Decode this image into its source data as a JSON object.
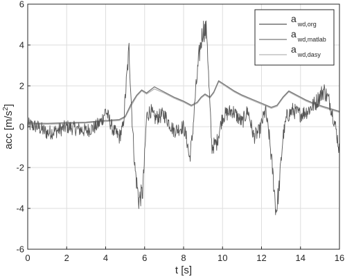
{
  "chart_data": {
    "type": "line",
    "xlabel": "t [s]",
    "ylabel_base": "acc [m/s",
    "ylabel_sup": "2",
    "ylabel_end": "]",
    "xlim": [
      0,
      16
    ],
    "ylim": [
      -6,
      6
    ],
    "x_ticks": [
      0,
      2,
      4,
      6,
      8,
      10,
      12,
      14,
      16
    ],
    "y_ticks": [
      -6,
      -4,
      -2,
      0,
      2,
      4,
      6
    ],
    "grid": true,
    "legend_position": "top-right",
    "legend": [
      {
        "main": "a",
        "sub": "wd,org",
        "color": "#555555"
      },
      {
        "main": "a",
        "sub": "wd,matlab",
        "color": "#777777"
      },
      {
        "main": "a",
        "sub": "wd,dasy",
        "color": "#b4b4b4"
      }
    ],
    "series": [
      {
        "name": "a_wd,org",
        "color": "#555555",
        "kind": "noisy",
        "noise_amplitude": 0.35,
        "sample_count": 800,
        "envelope": [
          [
            0.0,
            0.1
          ],
          [
            0.5,
            0.0
          ],
          [
            1.0,
            -0.3
          ],
          [
            1.5,
            -0.2
          ],
          [
            2.0,
            0.0
          ],
          [
            2.5,
            -0.1
          ],
          [
            3.0,
            -0.2
          ],
          [
            3.5,
            0.0
          ],
          [
            3.8,
            0.3
          ],
          [
            4.0,
            0.8
          ],
          [
            4.2,
            0.3
          ],
          [
            4.4,
            -0.2
          ],
          [
            4.7,
            -0.5
          ],
          [
            4.9,
            0.0
          ],
          [
            5.05,
            2.0
          ],
          [
            5.2,
            3.8
          ],
          [
            5.35,
            0.5
          ],
          [
            5.5,
            -2.0
          ],
          [
            5.7,
            -3.6
          ],
          [
            5.9,
            -3.2
          ],
          [
            6.0,
            -1.5
          ],
          [
            6.1,
            0.5
          ],
          [
            6.3,
            0.8
          ],
          [
            6.5,
            0.4
          ],
          [
            7.0,
            0.6
          ],
          [
            7.5,
            -0.2
          ],
          [
            8.0,
            0.0
          ],
          [
            8.2,
            -0.8
          ],
          [
            8.3,
            -1.6
          ],
          [
            8.45,
            -0.5
          ],
          [
            8.6,
            1.5
          ],
          [
            8.8,
            3.5
          ],
          [
            9.0,
            4.8
          ],
          [
            9.2,
            4.6
          ],
          [
            9.3,
            2.0
          ],
          [
            9.45,
            -1.0
          ],
          [
            9.7,
            -0.8
          ],
          [
            10.0,
            0.5
          ],
          [
            10.5,
            0.8
          ],
          [
            11.0,
            0.2
          ],
          [
            11.3,
            0.8
          ],
          [
            11.6,
            -0.5
          ],
          [
            11.9,
            -0.2
          ],
          [
            12.2,
            0.8
          ],
          [
            12.4,
            -0.5
          ],
          [
            12.6,
            -2.5
          ],
          [
            12.75,
            -4.2
          ],
          [
            12.9,
            -3.0
          ],
          [
            13.1,
            -0.5
          ],
          [
            13.3,
            0.5
          ],
          [
            13.6,
            0.8
          ],
          [
            14.0,
            0.6
          ],
          [
            14.4,
            0.8
          ],
          [
            14.8,
            1.2
          ],
          [
            15.2,
            1.8
          ],
          [
            15.5,
            1.2
          ],
          [
            15.8,
            0.0
          ],
          [
            16.0,
            -1.2
          ]
        ]
      },
      {
        "name": "a_wd,matlab",
        "color": "#777777",
        "kind": "smooth",
        "points": [
          [
            0.0,
            0.18
          ],
          [
            1.0,
            0.16
          ],
          [
            2.0,
            0.2
          ],
          [
            3.0,
            0.22
          ],
          [
            4.0,
            0.3
          ],
          [
            4.7,
            0.35
          ],
          [
            5.0,
            0.5
          ],
          [
            5.3,
            1.1
          ],
          [
            5.6,
            1.55
          ],
          [
            5.85,
            1.8
          ],
          [
            6.1,
            1.65
          ],
          [
            6.5,
            1.95
          ],
          [
            7.0,
            1.7
          ],
          [
            7.5,
            1.45
          ],
          [
            8.0,
            1.25
          ],
          [
            8.4,
            1.05
          ],
          [
            8.7,
            1.2
          ],
          [
            8.9,
            1.45
          ],
          [
            9.1,
            1.6
          ],
          [
            9.35,
            1.45
          ],
          [
            9.55,
            1.7
          ],
          [
            9.8,
            2.25
          ],
          [
            10.2,
            2.0
          ],
          [
            10.6,
            1.75
          ],
          [
            11.0,
            1.55
          ],
          [
            11.5,
            1.35
          ],
          [
            12.0,
            1.15
          ],
          [
            12.5,
            0.95
          ],
          [
            12.8,
            1.05
          ],
          [
            13.1,
            1.45
          ],
          [
            13.4,
            1.75
          ],
          [
            13.8,
            1.55
          ],
          [
            14.3,
            1.3
          ],
          [
            14.8,
            1.1
          ],
          [
            15.3,
            0.95
          ],
          [
            16.0,
            0.75
          ]
        ]
      },
      {
        "name": "a_wd,dasy",
        "color": "#b4b4b4",
        "kind": "smooth",
        "points": [
          [
            0.0,
            0.12
          ],
          [
            1.0,
            0.12
          ],
          [
            2.0,
            0.15
          ],
          [
            3.0,
            0.18
          ],
          [
            4.0,
            0.25
          ],
          [
            4.7,
            0.3
          ],
          [
            5.0,
            0.45
          ],
          [
            5.3,
            1.0
          ],
          [
            5.6,
            1.5
          ],
          [
            5.85,
            1.75
          ],
          [
            6.1,
            1.6
          ],
          [
            6.5,
            1.85
          ],
          [
            7.0,
            1.65
          ],
          [
            7.5,
            1.4
          ],
          [
            8.0,
            1.2
          ],
          [
            8.4,
            1.0
          ],
          [
            8.7,
            1.15
          ],
          [
            8.9,
            1.4
          ],
          [
            9.1,
            1.55
          ],
          [
            9.35,
            1.4
          ],
          [
            9.55,
            1.65
          ],
          [
            9.8,
            2.2
          ],
          [
            10.2,
            1.95
          ],
          [
            10.6,
            1.7
          ],
          [
            11.0,
            1.5
          ],
          [
            11.5,
            1.3
          ],
          [
            12.0,
            1.1
          ],
          [
            12.5,
            0.9
          ],
          [
            12.8,
            1.0
          ],
          [
            13.1,
            1.4
          ],
          [
            13.4,
            1.7
          ],
          [
            13.8,
            1.5
          ],
          [
            14.3,
            1.25
          ],
          [
            14.8,
            1.05
          ],
          [
            15.3,
            0.9
          ],
          [
            16.0,
            0.7
          ]
        ]
      }
    ]
  }
}
